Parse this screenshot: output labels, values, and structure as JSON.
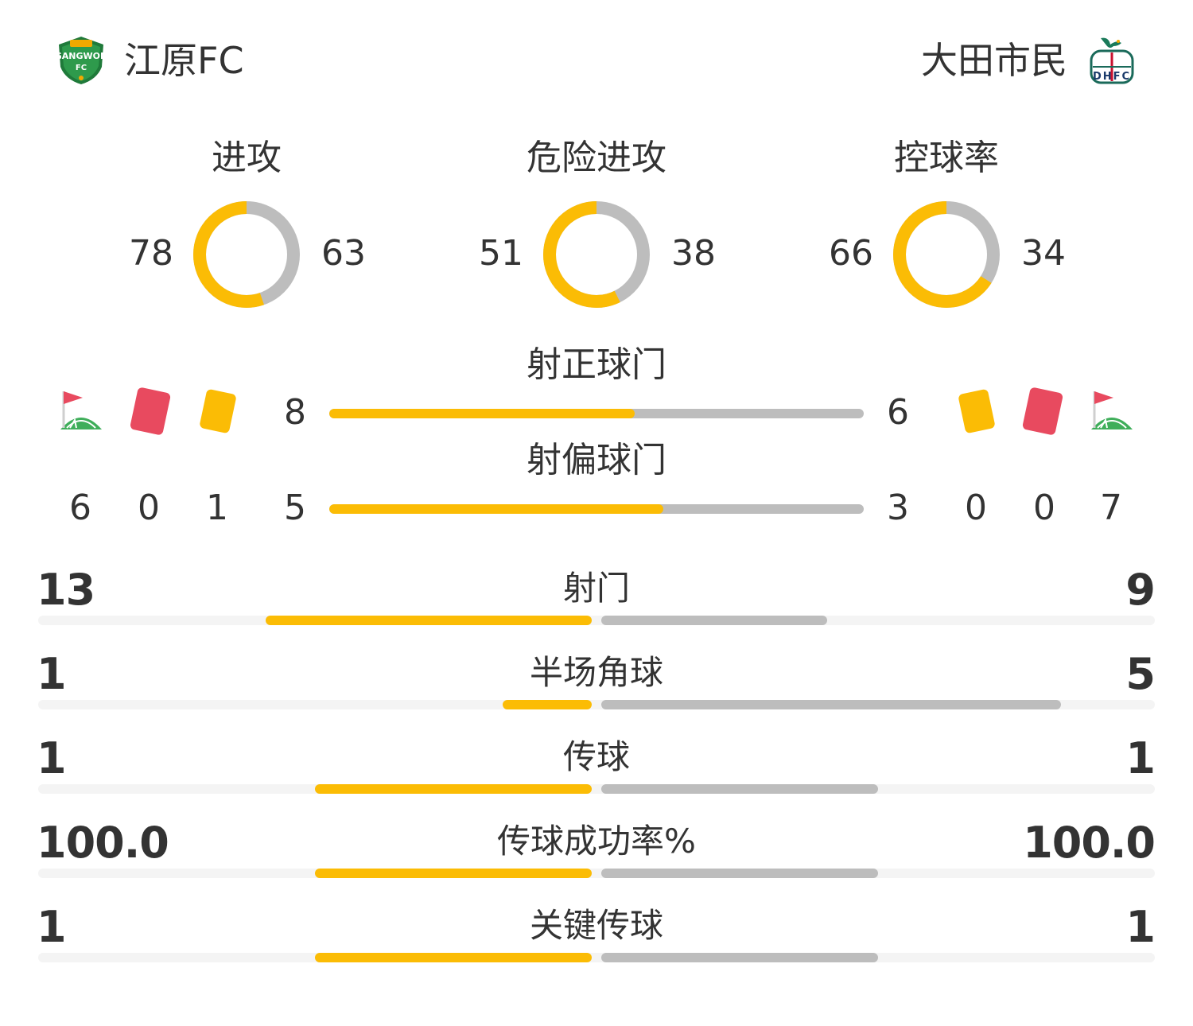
{
  "home": {
    "name": "江原FC",
    "logo_text": "GANGWON",
    "logo_sub": "FC"
  },
  "away": {
    "name": "大田市民",
    "logo_text": "DHFC"
  },
  "colors": {
    "home": "#fbbc05",
    "away": "#bdbdbd",
    "track": "#f4f4f4"
  },
  "donuts": [
    {
      "label": "进攻",
      "home": "78",
      "away": "63",
      "home_value": 78,
      "away_value": 63
    },
    {
      "label": "危险进攻",
      "home": "51",
      "away": "38",
      "home_value": 51,
      "away_value": 38
    },
    {
      "label": "控球率",
      "home": "66",
      "away": "34",
      "home_value": 66,
      "away_value": 34
    }
  ],
  "shots_on": {
    "label": "射正球门",
    "home": "8",
    "away": "6",
    "home_value": 8,
    "away_value": 6
  },
  "shots_off": {
    "label": "射偏球门",
    "home": "5",
    "away": "3",
    "home_value": 5,
    "away_value": 3
  },
  "cards": {
    "home": {
      "corners": "6",
      "red": "0",
      "yellow": "1"
    },
    "away": {
      "yellow": "0",
      "red": "0",
      "corners": "7"
    },
    "icons": [
      "corner-flag-icon",
      "red-card-icon",
      "yellow-card-icon"
    ]
  },
  "stats": [
    {
      "label": "射门",
      "home": "13",
      "away": "9",
      "home_value": 13,
      "away_value": 9
    },
    {
      "label": "半场角球",
      "home": "1",
      "away": "5",
      "home_value": 1,
      "away_value": 5
    },
    {
      "label": "传球",
      "home": "1",
      "away": "1",
      "home_value": 1,
      "away_value": 1
    },
    {
      "label": "传球成功率%",
      "home": "100.0",
      "away": "100.0",
      "home_value": 100,
      "away_value": 100
    },
    {
      "label": "关键传球",
      "home": "1",
      "away": "1",
      "home_value": 1,
      "away_value": 1
    }
  ]
}
